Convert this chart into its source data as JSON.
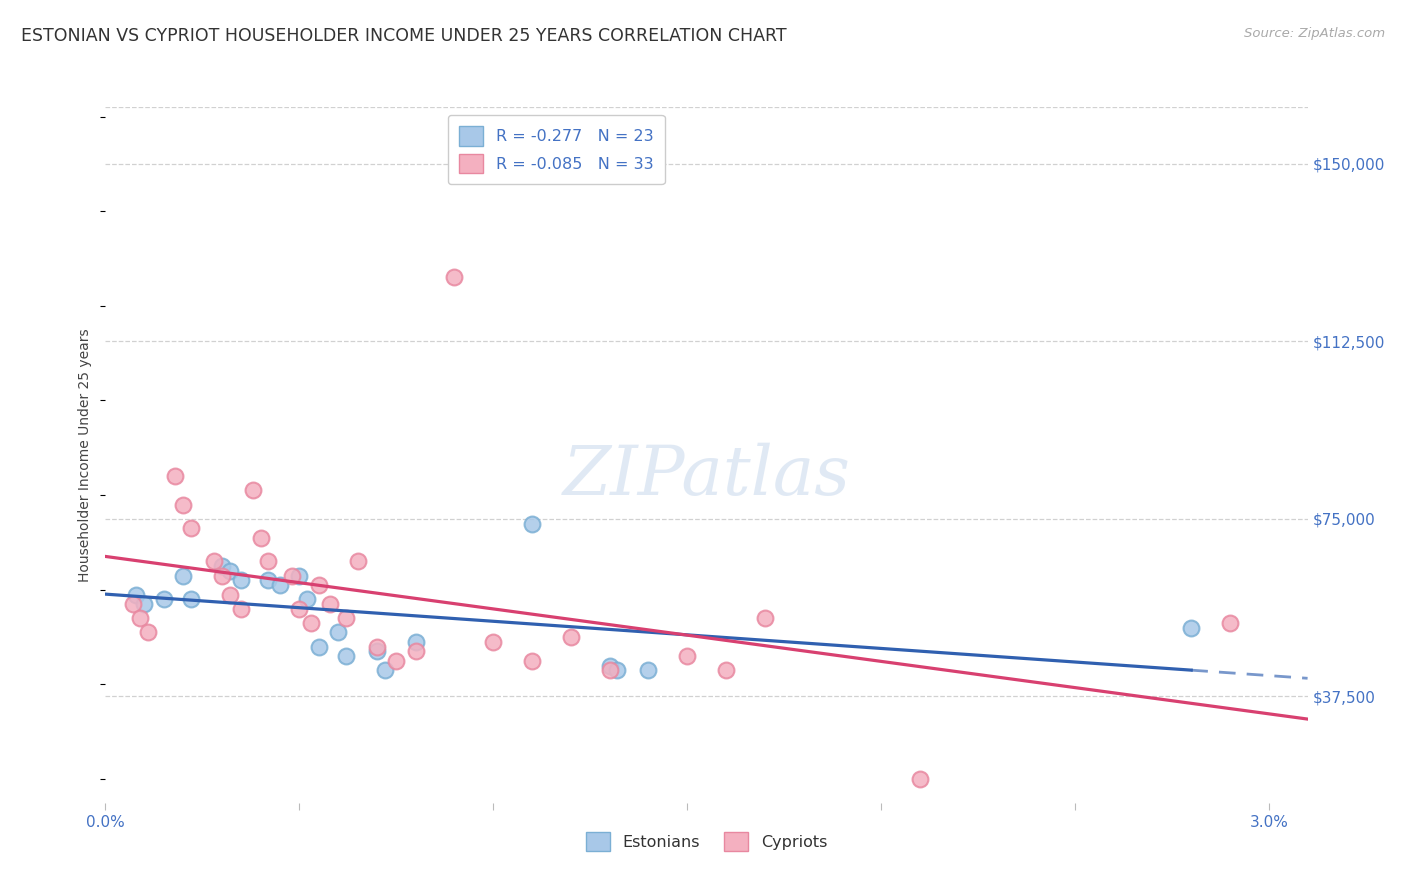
{
  "title": "ESTONIAN VS CYPRIOT HOUSEHOLDER INCOME UNDER 25 YEARS CORRELATION CHART",
  "source": "Source: ZipAtlas.com",
  "ylabel": "Householder Income Under 25 years",
  "ytick_labels": [
    "$150,000",
    "$112,500",
    "$75,000",
    "$37,500"
  ],
  "ytick_values": [
    150000,
    112500,
    75000,
    37500
  ],
  "ylim": [
    15000,
    162000
  ],
  "xlim": [
    0.0,
    0.031
  ],
  "legend_r_entries": [
    {
      "label": "R = -0.277   N = 23",
      "color": "#a8c8e8"
    },
    {
      "label": "R = -0.085   N = 33",
      "color": "#f4a8b8"
    }
  ],
  "watermark": "ZIPatlas",
  "estonians_color": "#a8c8e8",
  "estonians_edge": "#7bafd4",
  "cypriots_color": "#f4b0c0",
  "cypriots_edge": "#e888a0",
  "trendline_estonian_color": "#3060b0",
  "trendline_cypriot_color": "#d84070",
  "background_color": "#ffffff",
  "text_color_blue": "#4472c4",
  "estonians_x": [
    0.0008,
    0.001,
    0.0015,
    0.002,
    0.0022,
    0.003,
    0.0032,
    0.0035,
    0.0042,
    0.0045,
    0.005,
    0.0052,
    0.0055,
    0.006,
    0.0062,
    0.007,
    0.0072,
    0.008,
    0.011,
    0.013,
    0.0132,
    0.014,
    0.028
  ],
  "estonians_y": [
    59000,
    57000,
    58000,
    63000,
    58000,
    65000,
    64000,
    62000,
    62000,
    61000,
    63000,
    58000,
    48000,
    51000,
    46000,
    47000,
    43000,
    49000,
    74000,
    44000,
    43000,
    43000,
    52000
  ],
  "cypriots_x": [
    0.0007,
    0.0009,
    0.0011,
    0.0018,
    0.002,
    0.0022,
    0.0028,
    0.003,
    0.0032,
    0.0035,
    0.0038,
    0.004,
    0.0042,
    0.0048,
    0.005,
    0.0053,
    0.0055,
    0.0058,
    0.0062,
    0.0065,
    0.007,
    0.0075,
    0.008,
    0.009,
    0.01,
    0.011,
    0.012,
    0.013,
    0.015,
    0.016,
    0.017,
    0.021,
    0.029
  ],
  "cypriots_y": [
    57000,
    54000,
    51000,
    84000,
    78000,
    73000,
    66000,
    63000,
    59000,
    56000,
    81000,
    71000,
    66000,
    63000,
    56000,
    53000,
    61000,
    57000,
    54000,
    66000,
    48000,
    45000,
    47000,
    126000,
    49000,
    45000,
    50000,
    43000,
    46000,
    43000,
    54000,
    20000,
    53000
  ],
  "title_fontsize": 12.5,
  "source_fontsize": 9.5,
  "axis_label_fontsize": 10,
  "legend_fontsize": 11.5,
  "tick_fontsize": 11,
  "watermark_fontsize": 50,
  "marker_size": 130,
  "marker_lw": 1.5
}
